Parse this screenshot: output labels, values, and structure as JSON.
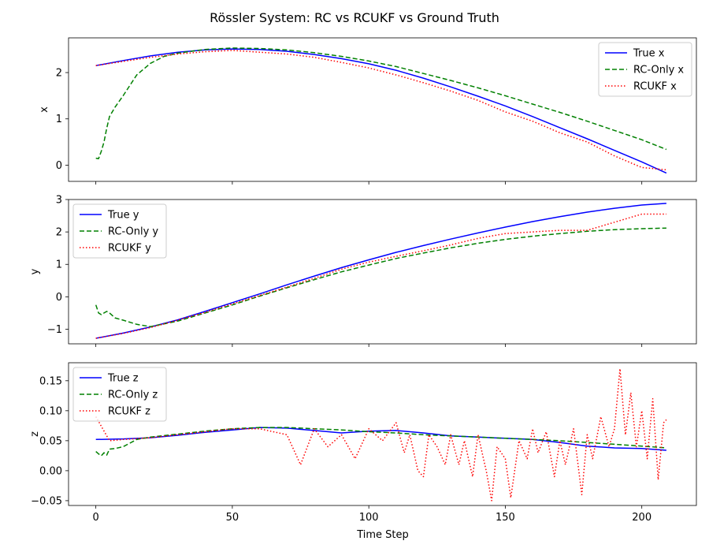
{
  "chart_data": {
    "type": "line",
    "title": "Rössler System: RC vs RCUKF vs Ground Truth",
    "xlabel": "Time Step",
    "xlim": [
      -10,
      220
    ],
    "xticks": [
      0,
      50,
      100,
      150,
      200
    ],
    "colors": {
      "true": "#0000ff",
      "rc": "#008000",
      "rcukf": "#ff0000"
    },
    "panels": [
      {
        "ylabel": "x",
        "ylim": [
          -0.35,
          2.75
        ],
        "yticks": [
          0,
          1,
          2
        ],
        "legend_loc": "top-right",
        "series": [
          {
            "name": "True x",
            "style": "solid",
            "color": "#0000ff",
            "x": [
              0,
              10,
              20,
              30,
              40,
              50,
              60,
              70,
              80,
              90,
              100,
              110,
              120,
              130,
              140,
              150,
              160,
              170,
              180,
              190,
              200,
              209
            ],
            "values": [
              2.15,
              2.26,
              2.36,
              2.44,
              2.49,
              2.51,
              2.5,
              2.46,
              2.39,
              2.3,
              2.19,
              2.05,
              1.88,
              1.69,
              1.49,
              1.28,
              1.05,
              0.81,
              0.57,
              0.32,
              0.07,
              -0.17
            ]
          },
          {
            "name": "RC-Only x",
            "style": "dashed",
            "color": "#008000",
            "x": [
              0,
              1,
              2,
              3,
              4,
              5,
              7,
              10,
              15,
              20,
              25,
              30,
              40,
              50,
              60,
              70,
              80,
              90,
              100,
              110,
              120,
              130,
              140,
              150,
              160,
              170,
              180,
              190,
              200,
              209
            ],
            "values": [
              0.15,
              0.14,
              0.3,
              0.5,
              0.8,
              1.05,
              1.25,
              1.5,
              1.95,
              2.2,
              2.35,
              2.42,
              2.5,
              2.53,
              2.52,
              2.49,
              2.43,
              2.35,
              2.25,
              2.13,
              1.98,
              1.83,
              1.67,
              1.5,
              1.32,
              1.14,
              0.95,
              0.75,
              0.55,
              0.34
            ]
          },
          {
            "name": "RCUKF x",
            "style": "dotted",
            "color": "#ff0000",
            "x": [
              0,
              10,
              20,
              30,
              40,
              50,
              60,
              70,
              80,
              90,
              100,
              110,
              120,
              130,
              140,
              150,
              160,
              170,
              180,
              190,
              200,
              209
            ],
            "values": [
              2.15,
              2.24,
              2.33,
              2.4,
              2.45,
              2.48,
              2.44,
              2.4,
              2.33,
              2.22,
              2.1,
              1.95,
              1.78,
              1.6,
              1.4,
              1.15,
              0.95,
              0.7,
              0.5,
              0.2,
              -0.05,
              -0.1
            ]
          }
        ]
      },
      {
        "ylabel": "y",
        "ylim": [
          -1.45,
          3.0
        ],
        "yticks": [
          -1,
          0,
          1,
          2,
          3
        ],
        "legend_loc": "top-left",
        "series": [
          {
            "name": "True y",
            "style": "solid",
            "color": "#0000ff",
            "x": [
              0,
              10,
              20,
              30,
              40,
              50,
              60,
              70,
              80,
              90,
              100,
              110,
              120,
              130,
              140,
              150,
              160,
              170,
              180,
              190,
              200,
              209
            ],
            "values": [
              -1.28,
              -1.12,
              -0.93,
              -0.71,
              -0.45,
              -0.18,
              0.09,
              0.37,
              0.64,
              0.9,
              1.14,
              1.37,
              1.58,
              1.78,
              1.97,
              2.15,
              2.32,
              2.47,
              2.61,
              2.73,
              2.83,
              2.88
            ]
          },
          {
            "name": "RC-Only y",
            "style": "dashed",
            "color": "#008000",
            "x": [
              0,
              1,
              2,
              3,
              4,
              5,
              7,
              10,
              15,
              20,
              30,
              40,
              50,
              60,
              70,
              80,
              90,
              100,
              110,
              120,
              130,
              140,
              150,
              160,
              170,
              180,
              190,
              200,
              209
            ],
            "values": [
              -0.25,
              -0.5,
              -0.55,
              -0.5,
              -0.45,
              -0.5,
              -0.65,
              -0.72,
              -0.85,
              -0.92,
              -0.75,
              -0.5,
              -0.25,
              0.02,
              0.28,
              0.53,
              0.77,
              0.98,
              1.18,
              1.35,
              1.51,
              1.65,
              1.77,
              1.87,
              1.95,
              2.02,
              2.07,
              2.1,
              2.12
            ]
          },
          {
            "name": "RCUKF y",
            "style": "dotted",
            "color": "#ff0000",
            "x": [
              0,
              10,
              20,
              30,
              40,
              50,
              60,
              70,
              80,
              90,
              100,
              110,
              120,
              130,
              140,
              150,
              160,
              170,
              180,
              190,
              200,
              209
            ],
            "values": [
              -1.28,
              -1.13,
              -0.95,
              -0.72,
              -0.48,
              -0.22,
              0.04,
              0.3,
              0.57,
              0.85,
              1.07,
              1.25,
              1.42,
              1.6,
              1.8,
              1.95,
              2.0,
              2.05,
              2.05,
              2.3,
              2.55,
              2.55
            ]
          }
        ]
      },
      {
        "ylabel": "z",
        "ylim": [
          -0.058,
          0.18
        ],
        "yticks": [
          -0.05,
          0.0,
          0.05,
          0.1,
          0.15
        ],
        "ytick_labels": [
          "−0.05",
          "0.00",
          "0.05",
          "0.10",
          "0.15"
        ],
        "legend_loc": "top-left",
        "series": [
          {
            "name": "True z",
            "style": "solid",
            "color": "#0000ff",
            "x": [
              0,
              10,
              20,
              30,
              40,
              50,
              60,
              70,
              80,
              90,
              100,
              110,
              120,
              130,
              140,
              150,
              160,
              170,
              180,
              190,
              200,
              209
            ],
            "values": [
              0.052,
              0.053,
              0.055,
              0.059,
              0.064,
              0.068,
              0.072,
              0.071,
              0.067,
              0.063,
              0.066,
              0.067,
              0.063,
              0.058,
              0.056,
              0.054,
              0.052,
              0.047,
              0.041,
              0.038,
              0.037,
              0.034
            ]
          },
          {
            "name": "RC-Only z",
            "style": "dashed",
            "color": "#008000",
            "x": [
              0,
              1,
              2,
              3,
              4,
              5,
              7,
              10,
              15,
              20,
              30,
              40,
              50,
              60,
              70,
              80,
              90,
              100,
              110,
              120,
              130,
              140,
              150,
              160,
              170,
              180,
              190,
              200,
              209
            ],
            "values": [
              0.032,
              0.028,
              0.025,
              0.03,
              0.026,
              0.036,
              0.037,
              0.04,
              0.052,
              0.056,
              0.061,
              0.066,
              0.07,
              0.072,
              0.072,
              0.07,
              0.068,
              0.065,
              0.063,
              0.06,
              0.058,
              0.056,
              0.054,
              0.052,
              0.05,
              0.047,
              0.044,
              0.041,
              0.038
            ]
          },
          {
            "name": "RCUKF z",
            "style": "dotted",
            "color": "#ff0000",
            "x": [
              0,
              5,
              10,
              20,
              30,
              40,
              50,
              60,
              70,
              75,
              80,
              85,
              90,
              95,
              100,
              105,
              110,
              113,
              115,
              118,
              120,
              122,
              125,
              128,
              130,
              133,
              135,
              138,
              140,
              143,
              145,
              147,
              150,
              152,
              155,
              158,
              160,
              162,
              165,
              168,
              170,
              172,
              175,
              178,
              180,
              182,
              185,
              188,
              190,
              192,
              194,
              196,
              198,
              200,
              202,
              204,
              206,
              208,
              209
            ],
            "values": [
              0.09,
              0.05,
              0.052,
              0.055,
              0.06,
              0.065,
              0.07,
              0.07,
              0.06,
              0.01,
              0.07,
              0.04,
              0.06,
              0.02,
              0.07,
              0.05,
              0.08,
              0.03,
              0.06,
              0.0,
              -0.01,
              0.06,
              0.04,
              0.01,
              0.06,
              0.01,
              0.05,
              -0.01,
              0.06,
              0.0,
              -0.05,
              0.04,
              0.02,
              -0.045,
              0.05,
              0.02,
              0.07,
              0.03,
              0.065,
              -0.01,
              0.05,
              0.01,
              0.07,
              -0.04,
              0.06,
              0.02,
              0.09,
              0.04,
              0.07,
              0.17,
              0.06,
              0.13,
              0.04,
              0.1,
              0.02,
              0.12,
              -0.015,
              0.08,
              0.085
            ]
          }
        ]
      }
    ]
  }
}
